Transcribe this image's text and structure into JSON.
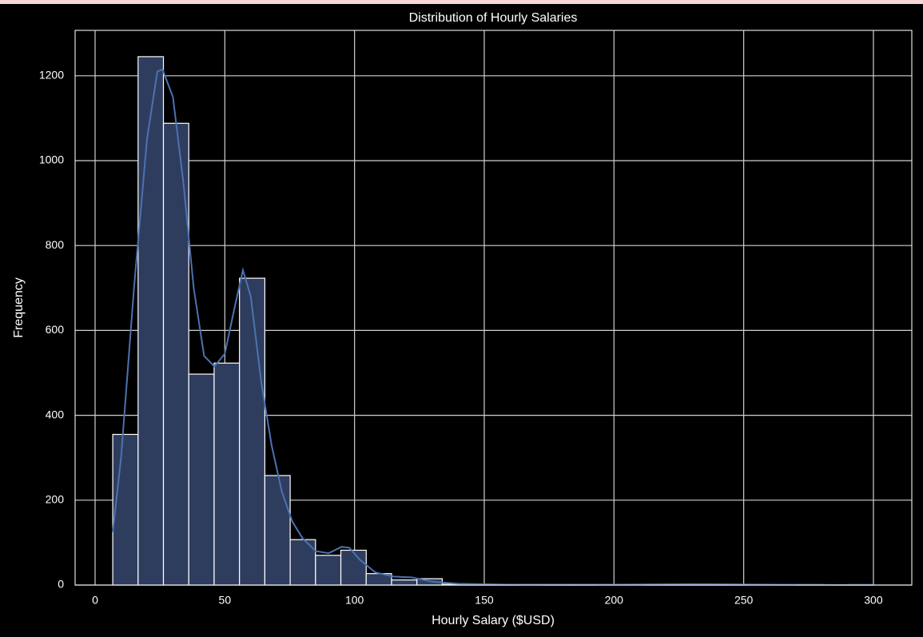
{
  "chart_data": {
    "type": "histogram",
    "title": "Distribution of Hourly Salaries",
    "xlabel": "Hourly Salary ($USD)",
    "ylabel": "Frequency",
    "bins": [
      6.8,
      16.57,
      26.34,
      36.11,
      45.88,
      55.65,
      65.42,
      75.19,
      84.96,
      94.73,
      104.5,
      114.27,
      124.04,
      133.81,
      143.58,
      153.35,
      163.12,
      172.89,
      182.66,
      192.43,
      202.2,
      211.97,
      221.74,
      231.51,
      241.28,
      251.05,
      260.82,
      270.59,
      280.36,
      290.13,
      299.9
    ],
    "counts": [
      355,
      1245,
      1088,
      497,
      523,
      723,
      258,
      107,
      70,
      82,
      27,
      12,
      15,
      2,
      1,
      1,
      0,
      1,
      1,
      0,
      0,
      1,
      1,
      2,
      1,
      0,
      0,
      1,
      0,
      1
    ],
    "color": "#2e3d5e",
    "edgecolor": "#ffffff",
    "kde": {
      "color": "#4c72b0",
      "x": [
        6.8,
        10,
        15,
        20,
        24,
        26,
        30,
        34,
        38,
        42,
        46,
        50,
        54,
        57,
        60,
        64,
        68,
        72,
        76,
        80,
        85,
        90,
        95,
        98,
        102,
        108,
        115,
        122,
        130,
        140,
        160,
        200,
        230,
        260,
        300
      ],
      "values": [
        125,
        300,
        700,
        1050,
        1210,
        1215,
        1150,
        950,
        700,
        540,
        515,
        545,
        660,
        742,
        680,
        480,
        330,
        220,
        150,
        110,
        80,
        75,
        90,
        88,
        60,
        30,
        20,
        18,
        8,
        3,
        1,
        1,
        2,
        1,
        0
      ]
    },
    "xlim": [
      -7.7,
      314.8
    ],
    "ylim": [
      0,
      1307
    ],
    "xticks": [
      0,
      50,
      100,
      150,
      200,
      250,
      300
    ],
    "yticks": [
      0,
      200,
      400,
      600,
      800,
      1000,
      1200
    ],
    "grid": true
  }
}
